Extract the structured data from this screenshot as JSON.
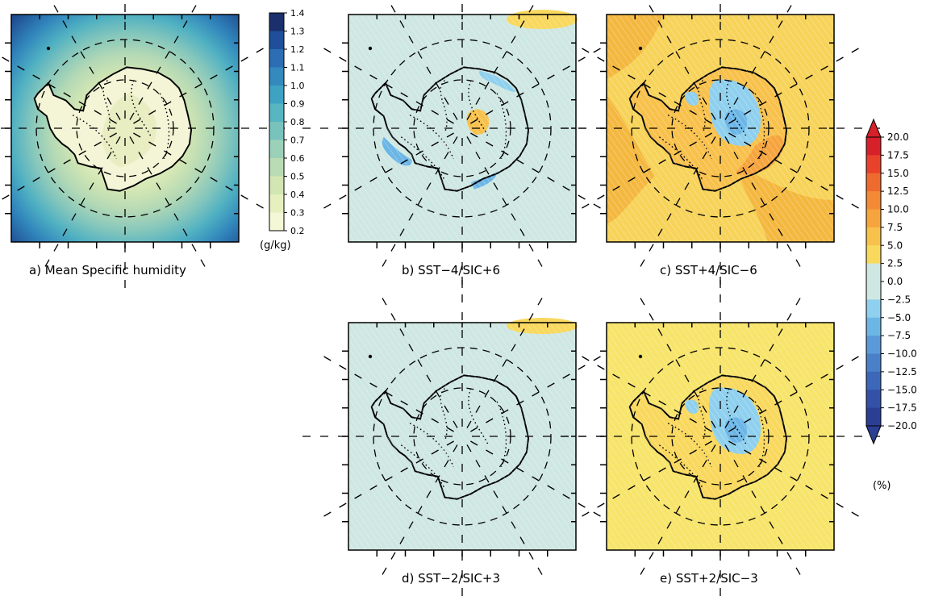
{
  "panels": [
    {
      "id": "a",
      "caption": "a) Mean Specific humidity",
      "kind": "mean",
      "base_color": "#e6f0c8",
      "anomalies": []
    },
    {
      "id": "b",
      "caption": "b) SST−4/SIC+6",
      "kind": "anomaly",
      "base_color": "#cfe7e2",
      "anomalies": [
        {
          "value": 2.5,
          "area": "east-interior"
        },
        {
          "value": 7.5,
          "area": "east-core"
        },
        {
          "value": -5.0,
          "area": "ross-coast"
        },
        {
          "value": -2.5,
          "area": "weddell-coast"
        }
      ]
    },
    {
      "id": "c",
      "caption": "c) SST+4/SIC−6",
      "kind": "anomaly",
      "base_color": "#f7d35a",
      "anomalies": [
        {
          "value": 7.5,
          "area": "continent"
        },
        {
          "value": 10.0,
          "area": "east-coast"
        },
        {
          "value": -2.5,
          "area": "east-interior"
        },
        {
          "value": -5.0,
          "area": "east-core"
        }
      ]
    },
    {
      "id": "d",
      "caption": "d) SST−2/SIC+3",
      "kind": "anomaly",
      "base_color": "#cfe7e2",
      "anomalies": [
        {
          "value": 2.5,
          "area": "east-interior"
        }
      ]
    },
    {
      "id": "e",
      "caption": "e) SST+2/SIC−3",
      "kind": "anomaly",
      "base_color": "#f7e46a",
      "anomalies": [
        {
          "value": 5.0,
          "area": "continent"
        },
        {
          "value": -2.5,
          "area": "east-interior"
        },
        {
          "value": -5.0,
          "area": "east-core"
        }
      ]
    }
  ],
  "colorbar_mean": {
    "unit": "(g/kg)",
    "labels": [
      "1.4",
      "1.3",
      "1.2",
      "1.1",
      "1.0",
      "0.9",
      "0.8",
      "0.7",
      "0.6",
      "0.5",
      "0.4",
      "0.3",
      "0.2"
    ],
    "colors": [
      "#1a2f6b",
      "#1f4f9a",
      "#2d6db3",
      "#3489bd",
      "#3ea2c2",
      "#58b5c2",
      "#79c3bd",
      "#9bd0b9",
      "#b9dcb5",
      "#d2e6b4",
      "#e6f0bf",
      "#f5f8d6"
    ]
  },
  "colorbar_anom": {
    "unit": "(%)",
    "labels": [
      "20.0",
      "17.5",
      "15.0",
      "12.5",
      "10.0",
      "7.5",
      "5.0",
      "2.5",
      "0.0",
      "−2.5",
      "−5.0",
      "−7.5",
      "−10.0",
      "−12.5",
      "−15.0",
      "−17.5",
      "−20.0"
    ],
    "colors": [
      "#d6202a",
      "#e8422a",
      "#ef6a2e",
      "#f28a36",
      "#f6a43e",
      "#f8c14c",
      "#f9d85e",
      "#cfe7e2",
      "#cfe7e2",
      "#8fd0ee",
      "#6cb6e6",
      "#5a9ad8",
      "#4a80c8",
      "#3d67b8",
      "#3351a6",
      "#2a3f94"
    ],
    "top_cap_color": "#d6202a",
    "bottom_cap_color": "#2a3f94"
  }
}
